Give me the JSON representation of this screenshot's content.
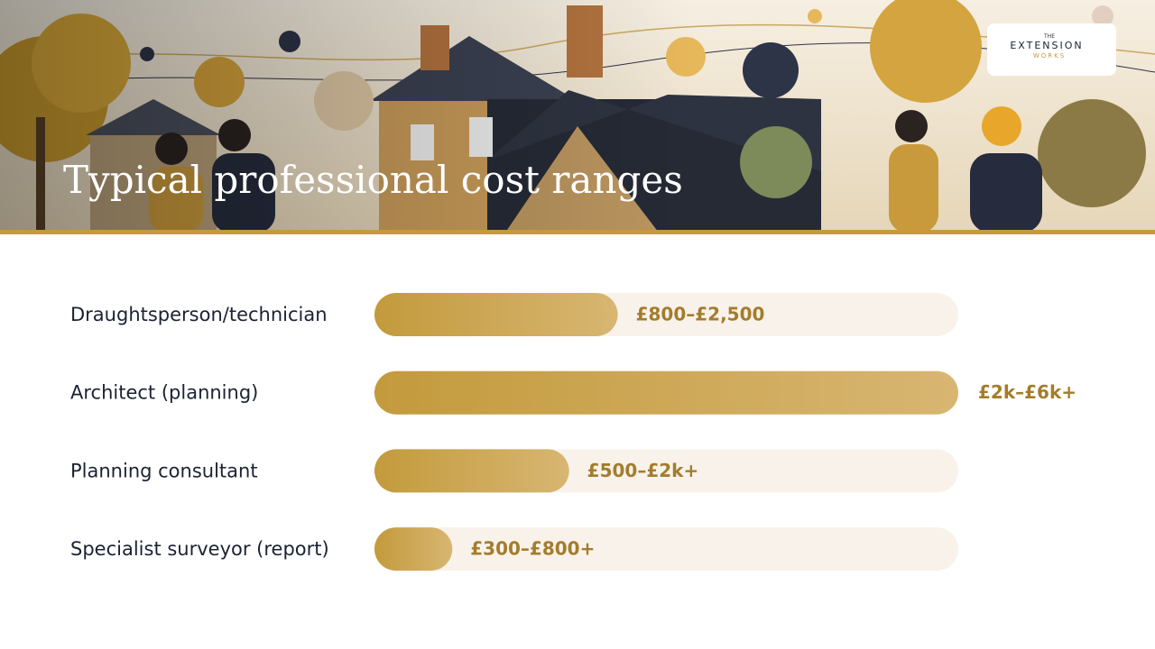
{
  "chart_data": {
    "type": "bar",
    "orientation": "horizontal",
    "title": "Typical professional cost ranges",
    "categories": [
      "Draughtsperson/technician",
      "Architect (planning)",
      "Planning consultant",
      "Specialist surveyor (report)"
    ],
    "values": [
      2500,
      6000,
      2000,
      800
    ],
    "value_labels": [
      "£800–£2,500",
      "£2k–£6k+",
      "£500–£2k+",
      "£300–£800+"
    ],
    "xlim": [
      0,
      6000
    ],
    "color": "#c49a3a"
  },
  "logo": {
    "small": "THE",
    "name": "EXTENSION",
    "sub": "WORKS"
  }
}
